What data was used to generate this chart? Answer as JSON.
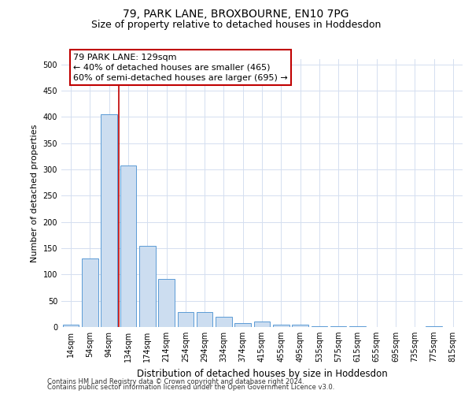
{
  "title1": "79, PARK LANE, BROXBOURNE, EN10 7PG",
  "title2": "Size of property relative to detached houses in Hoddesdon",
  "xlabel": "Distribution of detached houses by size in Hoddesdon",
  "ylabel": "Number of detached properties",
  "categories": [
    "14sqm",
    "54sqm",
    "94sqm",
    "134sqm",
    "174sqm",
    "214sqm",
    "254sqm",
    "294sqm",
    "334sqm",
    "374sqm",
    "415sqm",
    "455sqm",
    "495sqm",
    "535sqm",
    "575sqm",
    "615sqm",
    "655sqm",
    "695sqm",
    "735sqm",
    "775sqm",
    "815sqm"
  ],
  "values": [
    5,
    130,
    405,
    308,
    155,
    91,
    29,
    29,
    19,
    8,
    10,
    4,
    5,
    2,
    1,
    1,
    0,
    0,
    0,
    1,
    0
  ],
  "bar_color": "#ccddf0",
  "bar_edge_color": "#5b9bd5",
  "vline_x_index": 2,
  "vline_color": "#c00000",
  "annotation_line1": "79 PARK LANE: 129sqm",
  "annotation_line2": "← 40% of detached houses are smaller (465)",
  "annotation_line3": "60% of semi-detached houses are larger (695) →",
  "ylim": [
    0,
    510
  ],
  "yticks": [
    0,
    50,
    100,
    150,
    200,
    250,
    300,
    350,
    400,
    450,
    500
  ],
  "footer1": "Contains HM Land Registry data © Crown copyright and database right 2024.",
  "footer2": "Contains public sector information licensed under the Open Government Licence v3.0.",
  "bg_color": "#ffffff",
  "grid_color": "#d4dff0",
  "title1_fontsize": 10,
  "title2_fontsize": 9,
  "tick_fontsize": 7,
  "ylabel_fontsize": 8,
  "xlabel_fontsize": 8.5,
  "annotation_fontsize": 8,
  "footer_fontsize": 6
}
